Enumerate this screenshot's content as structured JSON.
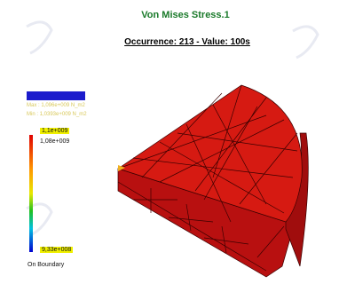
{
  "header": {
    "title": "Von Mises Stress.1",
    "occurrence": "Occurrence: 213 - Value: 100s"
  },
  "legend": {
    "max": "Max : 1,096e+009 N_m2",
    "min": "Min : 1,0393e+009 N_m2",
    "labels": [
      "1,1e+009",
      "1,08e+009",
      "9,33e+008"
    ],
    "boundary": "On Boundary"
  }
}
